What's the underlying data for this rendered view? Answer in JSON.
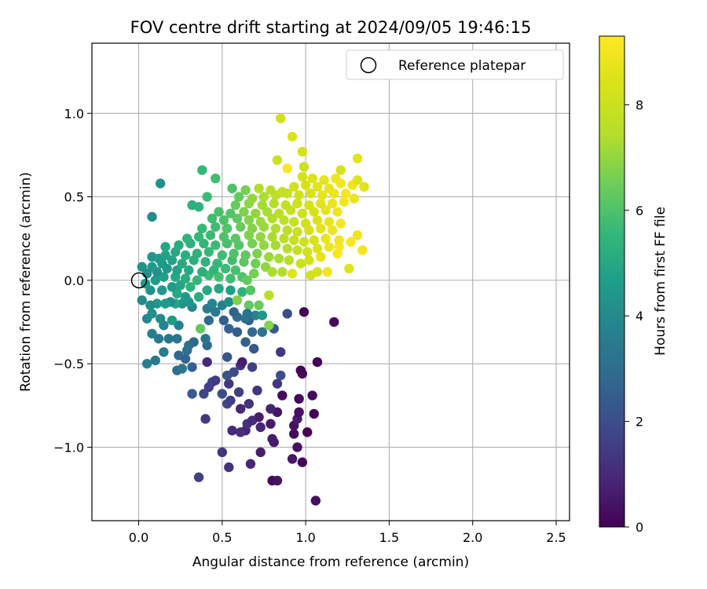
{
  "chart_data": {
    "type": "scatter",
    "title": "FOV centre drift starting at 2024/09/05 19:46:15",
    "xlabel": "Angular distance from reference (arcmin)",
    "ylabel": "Rotation from reference (arcmin)",
    "xlim": [
      -0.28,
      2.58
    ],
    "ylim": [
      -1.44,
      1.42
    ],
    "xticks": [
      0.0,
      0.5,
      1.0,
      1.5,
      2.0,
      2.5
    ],
    "xtick_labels": [
      "0.0",
      "0.5",
      "1.0",
      "1.5",
      "2.0",
      "2.5"
    ],
    "yticks": [
      -1.0,
      -0.5,
      0.0,
      0.5,
      1.0
    ],
    "ytick_labels": [
      "−1.0",
      "−0.5",
      "0.0",
      "0.5",
      "1.0"
    ],
    "grid": true,
    "legend": {
      "position": "top-right",
      "entries": [
        "Reference platepar"
      ]
    },
    "reference_point": {
      "x": 0.0,
      "y": 0.0,
      "label": "Reference platepar"
    },
    "colorbar": {
      "label": "Hours from first FF file",
      "colormap": "viridis",
      "range": [
        0,
        9.3
      ],
      "ticks": [
        0,
        2,
        4,
        6,
        8
      ],
      "tick_labels": [
        "0",
        "2",
        "4",
        "6",
        "8"
      ]
    },
    "points": [
      [
        1.06,
        -1.32,
        0.3
      ],
      [
        0.8,
        -1.2,
        0.2
      ],
      [
        0.83,
        -1.2,
        0.4
      ],
      [
        0.36,
        -1.18,
        1.6
      ],
      [
        0.54,
        -1.12,
        1.2
      ],
      [
        0.67,
        -1.1,
        0.9
      ],
      [
        0.98,
        -1.09,
        0.1
      ],
      [
        0.92,
        -1.07,
        0.5
      ],
      [
        0.5,
        -1.03,
        1.3
      ],
      [
        0.73,
        -1.03,
        0.7
      ],
      [
        0.95,
        -1.0,
        0.3
      ],
      [
        0.81,
        -0.97,
        0.6
      ],
      [
        0.8,
        -0.95,
        0.7
      ],
      [
        0.93,
        -0.92,
        0.2
      ],
      [
        0.56,
        -0.9,
        1.0
      ],
      [
        0.64,
        -0.9,
        0.8
      ],
      [
        0.61,
        -0.91,
        1.1
      ],
      [
        0.73,
        -0.88,
        0.9
      ],
      [
        0.79,
        -0.86,
        0.6
      ],
      [
        1.01,
        -0.91,
        0.0
      ],
      [
        0.65,
        -0.86,
        1.2
      ],
      [
        0.68,
        -0.84,
        1.0
      ],
      [
        0.93,
        -0.87,
        0.4
      ],
      [
        0.95,
        -0.83,
        0.6
      ],
      [
        0.4,
        -0.83,
        1.4
      ],
      [
        0.72,
        -0.82,
        0.7
      ],
      [
        1.05,
        -0.8,
        0.1
      ],
      [
        0.83,
        -0.79,
        0.5
      ],
      [
        0.96,
        -0.79,
        0.3
      ],
      [
        0.53,
        -0.74,
        1.8
      ],
      [
        0.61,
        -0.77,
        0.9
      ],
      [
        0.79,
        -0.77,
        0.8
      ],
      [
        0.66,
        -0.74,
        1.2
      ],
      [
        0.55,
        -0.72,
        1.6
      ],
      [
        0.96,
        -0.71,
        0.1
      ],
      [
        1.04,
        -0.69,
        0.2
      ],
      [
        0.32,
        -0.68,
        2.4
      ],
      [
        0.39,
        -0.68,
        1.8
      ],
      [
        0.5,
        -0.68,
        2.0
      ],
      [
        0.6,
        -0.67,
        1.6
      ],
      [
        0.71,
        -0.66,
        1.3
      ],
      [
        0.86,
        -0.69,
        0.2
      ],
      [
        0.42,
        -0.64,
        1.6
      ],
      [
        0.44,
        -0.61,
        1.7
      ],
      [
        0.46,
        -0.6,
        1.5
      ],
      [
        0.54,
        -0.62,
        1.3
      ],
      [
        0.83,
        -0.62,
        1.3
      ],
      [
        0.85,
        -0.57,
        2.0
      ],
      [
        0.53,
        -0.57,
        2.1
      ],
      [
        0.57,
        -0.55,
        2.0
      ],
      [
        0.98,
        -0.56,
        0.2
      ],
      [
        0.97,
        -0.54,
        0.1
      ],
      [
        0.61,
        -0.51,
        1.2
      ],
      [
        0.68,
        -0.52,
        1.6
      ],
      [
        0.62,
        -0.49,
        0.7
      ],
      [
        0.41,
        -0.49,
        1.0
      ],
      [
        1.07,
        -0.49,
        0.0
      ],
      [
        0.53,
        -0.46,
        2.3
      ],
      [
        0.23,
        -0.54,
        3.0
      ],
      [
        0.26,
        -0.53,
        3.3
      ],
      [
        0.32,
        -0.52,
        2.6
      ],
      [
        0.24,
        -0.45,
        2.8
      ],
      [
        0.28,
        -0.47,
        2.7
      ],
      [
        0.15,
        -0.43,
        3.5
      ],
      [
        0.05,
        -0.5,
        3.6
      ],
      [
        0.1,
        -0.48,
        3.4
      ],
      [
        0.85,
        -0.43,
        1.3
      ],
      [
        0.69,
        -0.41,
        2.3
      ],
      [
        0.29,
        -0.42,
        3.0
      ],
      [
        0.3,
        -0.39,
        3.1
      ],
      [
        0.41,
        -0.39,
        2.9
      ],
      [
        0.33,
        -0.37,
        2.9
      ],
      [
        0.23,
        -0.35,
        3.3
      ],
      [
        0.18,
        -0.35,
        3.2
      ],
      [
        0.12,
        -0.35,
        3.4
      ],
      [
        0.08,
        -0.32,
        3.6
      ],
      [
        0.64,
        -0.37,
        2.6
      ],
      [
        0.59,
        -0.31,
        2.5
      ],
      [
        0.68,
        -0.31,
        2.9
      ],
      [
        0.74,
        -0.31,
        3.2
      ],
      [
        0.81,
        -0.29,
        2.3
      ],
      [
        0.54,
        -0.29,
        2.6
      ],
      [
        0.4,
        -0.35,
        3.2
      ],
      [
        0.37,
        -0.29,
        6.3
      ],
      [
        0.24,
        -0.27,
        3.7
      ],
      [
        0.15,
        -0.27,
        3.8
      ],
      [
        0.05,
        -0.23,
        3.9
      ],
      [
        0.08,
        -0.2,
        4.2
      ],
      [
        0.13,
        -0.23,
        4.0
      ],
      [
        0.2,
        -0.24,
        4.6
      ],
      [
        0.42,
        -0.24,
        2.8
      ],
      [
        0.51,
        -0.24,
        2.5
      ],
      [
        0.66,
        -0.24,
        2.4
      ],
      [
        0.59,
        -0.22,
        3.0
      ],
      [
        0.64,
        -0.23,
        3.1
      ],
      [
        0.7,
        -0.21,
        3.8
      ],
      [
        0.74,
        -0.21,
        4.4
      ],
      [
        0.78,
        -0.27,
        6.8
      ],
      [
        0.89,
        -0.2,
        2.0
      ],
      [
        0.99,
        -0.19,
        0.1
      ],
      [
        1.17,
        -0.25,
        0.2
      ],
      [
        0.57,
        -0.19,
        2.6
      ],
      [
        0.46,
        -0.19,
        3.4
      ],
      [
        0.41,
        -0.17,
        3.5
      ],
      [
        0.44,
        -0.14,
        3.8
      ],
      [
        0.5,
        -0.15,
        3.7
      ],
      [
        0.54,
        -0.13,
        4.1
      ],
      [
        0.59,
        -0.12,
        6.7
      ],
      [
        0.66,
        -0.15,
        6.3
      ],
      [
        0.65,
        -0.2,
        3.2
      ],
      [
        0.72,
        -0.15,
        6.4
      ],
      [
        0.32,
        -0.16,
        3.9
      ],
      [
        0.3,
        -0.13,
        4.4
      ],
      [
        0.26,
        -0.14,
        4.3
      ],
      [
        0.22,
        -0.14,
        4.8
      ],
      [
        0.19,
        -0.13,
        4.2
      ],
      [
        0.16,
        -0.14,
        4.6
      ],
      [
        0.11,
        -0.14,
        4.4
      ],
      [
        0.07,
        -0.15,
        4.1
      ],
      [
        0.02,
        -0.12,
        4.0
      ],
      [
        0.28,
        -0.1,
        4.6
      ],
      [
        0.23,
        -0.08,
        5.0
      ],
      [
        0.36,
        -0.1,
        5.2
      ],
      [
        0.31,
        -0.04,
        5.4
      ],
      [
        0.41,
        -0.06,
        5.0
      ],
      [
        0.48,
        -0.05,
        4.9
      ],
      [
        0.55,
        -0.06,
        4.7
      ],
      [
        0.62,
        -0.07,
        5.4
      ],
      [
        0.67,
        -0.06,
        6.1
      ],
      [
        0.78,
        -0.09,
        7.6
      ],
      [
        0.07,
        -0.06,
        4.3
      ],
      [
        0.14,
        -0.06,
        4.4
      ],
      [
        0.2,
        -0.04,
        4.6
      ],
      [
        0.25,
        -0.03,
        4.9
      ],
      [
        0.04,
        -0.02,
        4.5
      ],
      [
        0.1,
        0.0,
        4.6
      ],
      [
        0.15,
        0.02,
        4.7
      ],
      [
        0.22,
        0.02,
        5.0
      ],
      [
        0.28,
        0.01,
        5.2
      ],
      [
        0.35,
        0.0,
        5.5
      ],
      [
        0.42,
        0.03,
        5.7
      ],
      [
        0.48,
        0.02,
        5.9
      ],
      [
        0.55,
        0.01,
        5.8
      ],
      [
        0.62,
        0.02,
        6.0
      ],
      [
        0.65,
        0.0,
        6.4
      ],
      [
        0.69,
        0.04,
        6.6
      ],
      [
        0.05,
        0.04,
        4.1
      ],
      [
        0.11,
        0.05,
        4.2
      ],
      [
        0.17,
        0.07,
        4.5
      ],
      [
        0.23,
        0.06,
        4.8
      ],
      [
        0.3,
        0.06,
        5.0
      ],
      [
        0.38,
        0.05,
        5.3
      ],
      [
        0.45,
        0.06,
        5.5
      ],
      [
        0.52,
        0.07,
        5.7
      ],
      [
        0.58,
        0.06,
        5.9
      ],
      [
        0.02,
        0.08,
        4.3
      ],
      [
        0.08,
        0.08,
        4.5
      ],
      [
        0.14,
        0.1,
        4.6
      ],
      [
        0.2,
        0.12,
        4.8
      ],
      [
        0.26,
        0.1,
        5.1
      ],
      [
        0.33,
        0.12,
        5.3
      ],
      [
        0.4,
        0.11,
        5.4
      ],
      [
        0.47,
        0.1,
        5.6
      ],
      [
        0.56,
        0.12,
        5.8
      ],
      [
        0.63,
        0.11,
        6.2
      ],
      [
        0.7,
        0.1,
        6.5
      ],
      [
        0.76,
        0.08,
        7.0
      ],
      [
        0.8,
        0.05,
        7.3
      ],
      [
        0.86,
        0.05,
        7.4
      ],
      [
        0.92,
        0.04,
        8.6
      ],
      [
        1.03,
        0.03,
        8.3
      ],
      [
        1.07,
        0.05,
        8.3
      ],
      [
        1.13,
        0.05,
        9.0
      ],
      [
        1.26,
        0.07,
        8.6
      ],
      [
        0.08,
        0.14,
        4.4
      ],
      [
        0.12,
        0.13,
        4.6
      ],
      [
        0.16,
        0.15,
        4.8
      ],
      [
        0.22,
        0.17,
        5.0
      ],
      [
        0.28,
        0.15,
        5.2
      ],
      [
        0.35,
        0.16,
        5.4
      ],
      [
        0.42,
        0.17,
        5.6
      ],
      [
        0.5,
        0.15,
        5.8
      ],
      [
        0.57,
        0.16,
        6.0
      ],
      [
        0.64,
        0.15,
        6.3
      ],
      [
        0.71,
        0.16,
        6.7
      ],
      [
        0.78,
        0.14,
        7.1
      ],
      [
        0.84,
        0.13,
        7.3
      ],
      [
        0.9,
        0.12,
        7.6
      ],
      [
        0.97,
        0.1,
        8.0
      ],
      [
        1.02,
        0.12,
        8.3
      ],
      [
        1.09,
        0.14,
        8.7
      ],
      [
        1.19,
        0.16,
        9.1
      ],
      [
        0.16,
        0.2,
        4.9
      ],
      [
        0.24,
        0.21,
        5.1
      ],
      [
        0.31,
        0.22,
        5.3
      ],
      [
        0.39,
        0.22,
        5.5
      ],
      [
        0.46,
        0.21,
        5.7
      ],
      [
        0.53,
        0.22,
        5.9
      ],
      [
        0.6,
        0.21,
        6.1
      ],
      [
        0.68,
        0.22,
        6.6
      ],
      [
        0.75,
        0.21,
        7.0
      ],
      [
        0.82,
        0.21,
        7.2
      ],
      [
        0.89,
        0.19,
        7.5
      ],
      [
        0.95,
        0.18,
        7.9
      ],
      [
        1.01,
        0.17,
        8.2
      ],
      [
        1.07,
        0.19,
        8.5
      ],
      [
        1.14,
        0.2,
        8.9
      ],
      [
        1.2,
        0.2,
        9.2
      ],
      [
        1.34,
        0.18,
        9.0
      ],
      [
        0.29,
        0.25,
        5.4
      ],
      [
        0.36,
        0.26,
        5.6
      ],
      [
        0.43,
        0.27,
        5.7
      ],
      [
        0.51,
        0.26,
        6.0
      ],
      [
        0.58,
        0.25,
        6.2
      ],
      [
        0.66,
        0.27,
        6.7
      ],
      [
        0.73,
        0.26,
        7.0
      ],
      [
        0.8,
        0.26,
        7.3
      ],
      [
        0.87,
        0.25,
        7.6
      ],
      [
        0.93,
        0.24,
        7.9
      ],
      [
        0.99,
        0.23,
        8.1
      ],
      [
        1.05,
        0.24,
        8.4
      ],
      [
        1.12,
        0.25,
        8.8
      ],
      [
        1.2,
        0.24,
        9.0
      ],
      [
        1.27,
        0.23,
        9.2
      ],
      [
        1.31,
        0.27,
        8.9
      ],
      [
        0.38,
        0.31,
        5.6
      ],
      [
        0.46,
        0.32,
        5.8
      ],
      [
        0.53,
        0.31,
        6.1
      ],
      [
        0.61,
        0.32,
        6.4
      ],
      [
        0.68,
        0.31,
        6.8
      ],
      [
        0.75,
        0.32,
        7.1
      ],
      [
        0.82,
        0.31,
        7.4
      ],
      [
        0.89,
        0.3,
        7.7
      ],
      [
        0.95,
        0.29,
        8.0
      ],
      [
        1.02,
        0.3,
        8.3
      ],
      [
        1.09,
        0.31,
        8.6
      ],
      [
        1.16,
        0.3,
        8.9
      ],
      [
        1.21,
        0.34,
        9.1
      ],
      [
        0.44,
        0.37,
        5.8
      ],
      [
        0.51,
        0.36,
        6.0
      ],
      [
        0.59,
        0.37,
        6.3
      ],
      [
        0.66,
        0.36,
        6.8
      ],
      [
        0.73,
        0.35,
        7.1
      ],
      [
        0.8,
        0.37,
        7.4
      ],
      [
        0.87,
        0.36,
        7.7
      ],
      [
        0.93,
        0.35,
        7.9
      ],
      [
        1.0,
        0.34,
        8.2
      ],
      [
        1.07,
        0.36,
        8.5
      ],
      [
        1.14,
        0.35,
        8.8
      ],
      [
        0.48,
        0.41,
        5.9
      ],
      [
        0.55,
        0.4,
        6.1
      ],
      [
        0.63,
        0.41,
        6.7
      ],
      [
        0.7,
        0.4,
        7.0
      ],
      [
        0.77,
        0.41,
        7.3
      ],
      [
        0.84,
        0.4,
        7.6
      ],
      [
        0.91,
        0.42,
        7.9
      ],
      [
        0.98,
        0.4,
        8.1
      ],
      [
        1.05,
        0.41,
        8.4
      ],
      [
        1.12,
        0.42,
        8.7
      ],
      [
        1.19,
        0.41,
        9.0
      ],
      [
        0.36,
        0.44,
        5.4
      ],
      [
        0.32,
        0.45,
        5.3
      ],
      [
        0.58,
        0.45,
        6.4
      ],
      [
        0.66,
        0.46,
        6.9
      ],
      [
        0.74,
        0.45,
        7.2
      ],
      [
        0.81,
        0.46,
        7.5
      ],
      [
        0.88,
        0.45,
        7.8
      ],
      [
        0.95,
        0.46,
        8.1
      ],
      [
        1.02,
        0.45,
        8.3
      ],
      [
        1.09,
        0.46,
        8.6
      ],
      [
        1.16,
        0.46,
        8.9
      ],
      [
        1.23,
        0.47,
        9.0
      ],
      [
        1.29,
        0.49,
        8.8
      ],
      [
        0.41,
        0.5,
        5.7
      ],
      [
        0.6,
        0.5,
        6.3
      ],
      [
        0.68,
        0.49,
        7.0
      ],
      [
        0.75,
        0.5,
        7.3
      ],
      [
        0.82,
        0.51,
        7.6
      ],
      [
        0.89,
        0.52,
        7.9
      ],
      [
        0.96,
        0.51,
        8.2
      ],
      [
        1.03,
        0.52,
        8.4
      ],
      [
        1.1,
        0.51,
        8.7
      ],
      [
        1.17,
        0.52,
        8.9
      ],
      [
        1.24,
        0.52,
        9.1
      ],
      [
        0.56,
        0.55,
        6.0
      ],
      [
        0.64,
        0.54,
        6.6
      ],
      [
        0.72,
        0.55,
        7.4
      ],
      [
        0.79,
        0.54,
        7.6
      ],
      [
        0.86,
        0.53,
        7.9
      ],
      [
        0.93,
        0.56,
        8.2
      ],
      [
        1.0,
        0.57,
        8.4
      ],
      [
        1.07,
        0.56,
        8.6
      ],
      [
        1.14,
        0.55,
        8.8
      ],
      [
        1.21,
        0.58,
        9.0
      ],
      [
        1.28,
        0.57,
        8.9
      ],
      [
        1.35,
        0.56,
        8.6
      ],
      [
        0.98,
        0.62,
        8.3
      ],
      [
        1.04,
        0.61,
        8.5
      ],
      [
        1.11,
        0.6,
        8.7
      ],
      [
        1.18,
        0.61,
        8.9
      ],
      [
        1.31,
        0.6,
        8.6
      ],
      [
        0.13,
        0.58,
        4.2
      ],
      [
        0.08,
        0.38,
        4.1
      ],
      [
        0.46,
        0.61,
        5.8
      ],
      [
        0.38,
        0.66,
        5.6
      ],
      [
        0.83,
        0.72,
        8.0
      ],
      [
        0.89,
        0.67,
        9.2
      ],
      [
        0.99,
        0.68,
        8.0
      ],
      [
        1.21,
        0.66,
        8.4
      ],
      [
        1.31,
        0.73,
        8.6
      ],
      [
        0.98,
        0.77,
        8.3
      ],
      [
        0.92,
        0.86,
        8.5
      ],
      [
        0.85,
        0.97,
        8.2
      ]
    ]
  }
}
